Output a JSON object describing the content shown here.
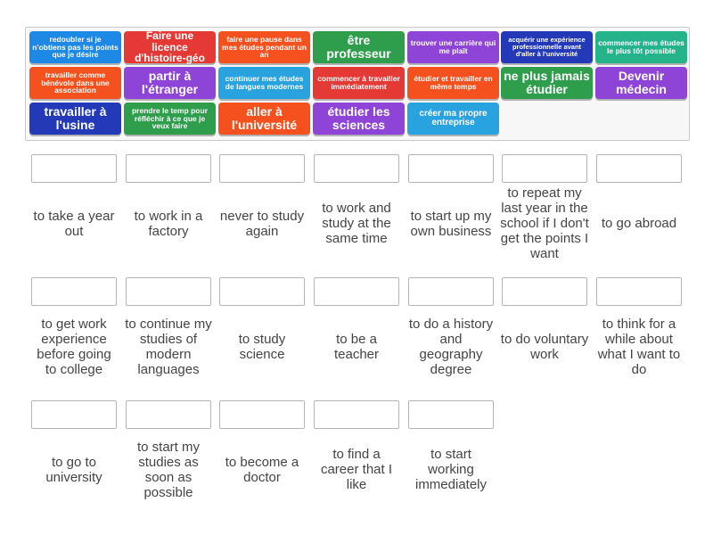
{
  "colors": {
    "blue": "#1e88e5",
    "red": "#e53935",
    "orange": "#f4511e",
    "green": "#2e9d4c",
    "purple": "#8e44d6",
    "skyblue": "#29a3e0",
    "navy": "#2339b8",
    "teal": "#25b38a"
  },
  "tiles": [
    {
      "text": "redoubler si je n'obtiens pas les points que je désire",
      "color": "blue"
    },
    {
      "text": "Faire une licence d'histoire-géo",
      "color": "red"
    },
    {
      "text": "faire une pause dans mes études pendant un an",
      "color": "orange"
    },
    {
      "text": "être professeur",
      "color": "green"
    },
    {
      "text": "trouver une carrière qui me plaît",
      "color": "purple"
    },
    {
      "text": "acquérir une expérience professionnelle avant d'aller à l'université",
      "color": "navy"
    },
    {
      "text": "commencer mes études le plus tôt possible",
      "color": "teal"
    },
    {
      "text": "travailler comme bénévole dans une association",
      "color": "orange"
    },
    {
      "text": "partir à l'étranger",
      "color": "purple"
    },
    {
      "text": "continuer mes études de langues modernes",
      "color": "skyblue"
    },
    {
      "text": "commencer à travailler immédiatement",
      "color": "red"
    },
    {
      "text": "étudier et travailler en même temps",
      "color": "orange"
    },
    {
      "text": "ne plus jamais étudier",
      "color": "green"
    },
    {
      "text": "Devenir médecin",
      "color": "purple"
    },
    {
      "text": "travailler à l'usine",
      "color": "navy"
    },
    {
      "text": "prendre le temp pour réfléchir à ce que je veux faire",
      "color": "green"
    },
    {
      "text": "aller à l'université",
      "color": "orange"
    },
    {
      "text": "étudier les sciences",
      "color": "purple"
    },
    {
      "text": "créer ma propre entreprise",
      "color": "skyblue"
    }
  ],
  "prompts": [
    "to take a year out",
    "to work in a factory",
    "never to study again",
    "to work and study at the same time",
    "to start up my own business",
    "to repeat my last year in the school if I don't get the points I want",
    "to go abroad",
    "to get work experience before going to college",
    "to continue my studies of modern languages",
    "to study science",
    "to be a teacher",
    "to do a history and geography degree",
    "to do voluntary work",
    "to think for a while about what I want to do",
    "to go to university",
    "to start my studies as soon as possible",
    "to become a doctor",
    "to find a career that I like",
    "to start working immediately"
  ]
}
